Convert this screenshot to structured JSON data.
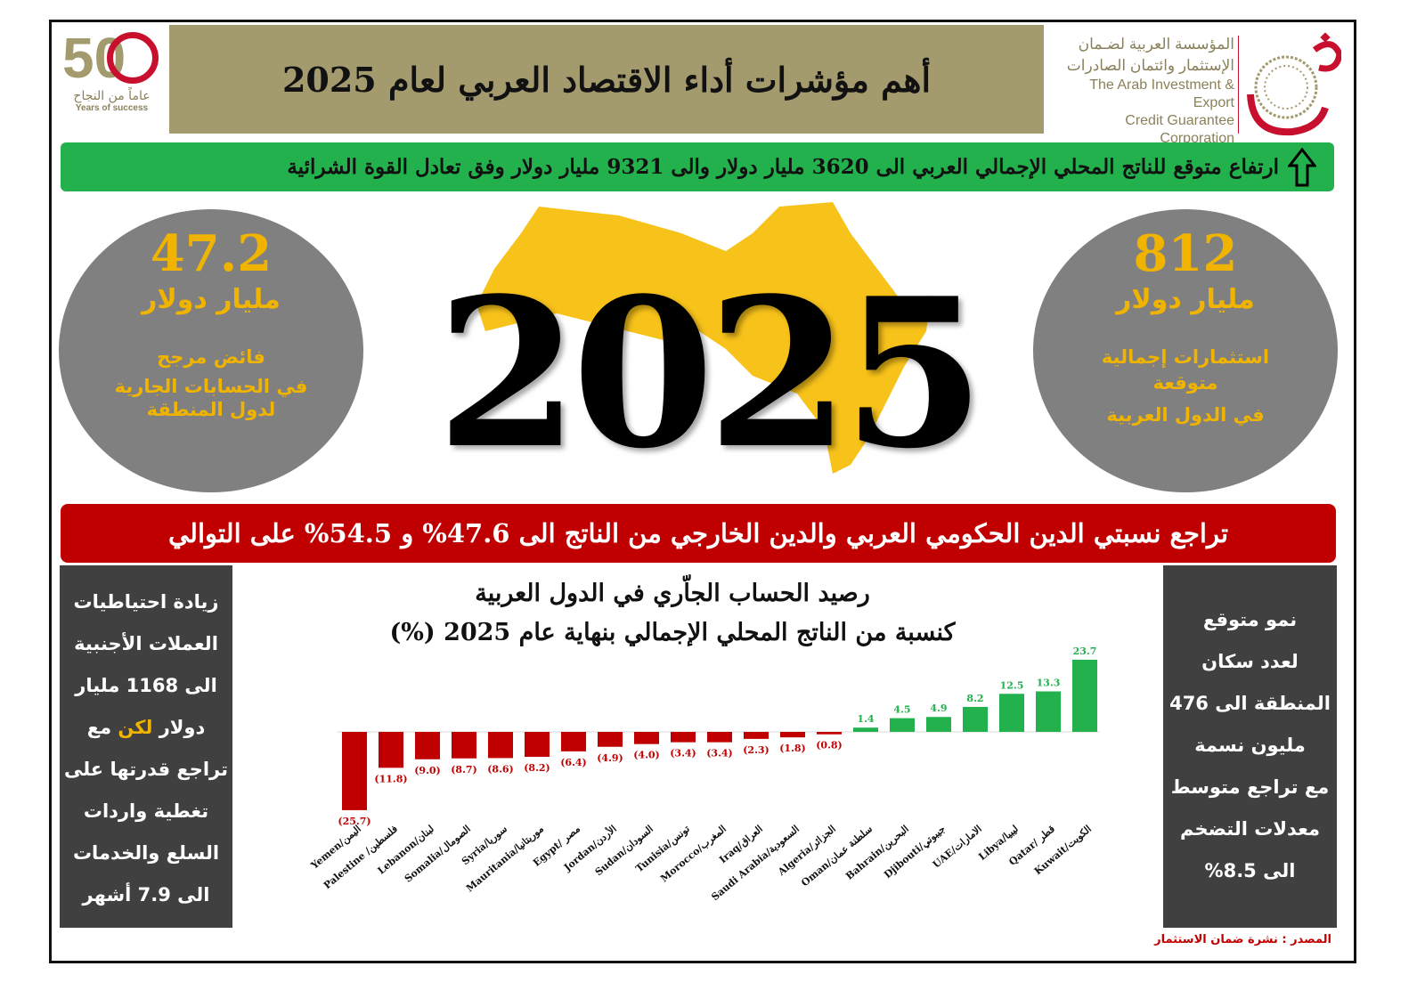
{
  "header": {
    "title": "أهم مؤشرات أداء الاقتصاد العربي لعام 2025",
    "anniversary_logo": {
      "number": "50",
      "arabic": "عاماً من النجاح",
      "english": "Years of success"
    },
    "corporation": {
      "arabic_line1": "المؤسسة العربية لضـمان",
      "arabic_line2": "الإستثمار وائتمان الصادرات",
      "english_line1": "The Arab Investment & Export",
      "english_line2": "Credit Guarantee Corporation"
    }
  },
  "gdp_banner": {
    "text": "ارتفاع متوقع للناتج المحلي الإجمالي العربي الى 3620 مليار دولار والى 9321 مليار دولار وفق تعادل القوة الشرائية",
    "icon": "arrow-up-icon"
  },
  "left_circle": {
    "value": "47.2",
    "unit": "مليار دولار",
    "line1": "فائض مرجح",
    "line2": "في الحسابات الجارية",
    "line3": "لدول المنطقة"
  },
  "right_circle": {
    "value": "812",
    "unit": "مليار دولار",
    "line1": "استثمارات إجمالية",
    "line2": "متوقعة",
    "line3": "في الدول العربية"
  },
  "center_year": "2025",
  "debt_banner": {
    "text": "تراجع نسبتي الدين الحكومي العربي والدين الخارجي من الناتج الى 47.6% و 54.5% على التوالي"
  },
  "left_panel": {
    "line1": "زيادة احتياطيات",
    "line2": "العملات الأجنبية",
    "line3": "الى 1168 مليار",
    "line4_a": "دولار ",
    "line4_highlight": "لكن",
    "line4_b": " مع",
    "line5": "تراجع قدرتها على",
    "line6": "تغطية واردات",
    "line7": "السلع والخدمات",
    "line8": "الى 7.9 أشهر"
  },
  "right_panel": {
    "line1": "نمو متوقع",
    "line2": "لعدد سكان",
    "line3": "المنطقة الى 476",
    "line4": "مليون نسمة",
    "line5": "مع تراجع متوسط",
    "line6": "معدلات التضخم",
    "line7": "الى 8.5%"
  },
  "chart_data": {
    "type": "bar",
    "title": "رصيد الحساب الجاّري في الدول العربية",
    "subtitle": "كنسبة من الناتج المحلي الإجمالي بنهاية عام 2025 (%)",
    "categories": [
      "Yemen/اليمن",
      "Palestine /فلسطين",
      "Lebanon/لبنان",
      "Somalia/الصومال",
      "Syria/سوريا",
      "Mauritania/موريتانيا",
      "Egypt/ مصر",
      "Jordan/الأردن",
      "Sudan/السودان",
      "Tunisia/تونس",
      "Morocco/المغرب",
      "Iraq/العراق",
      "Saudi Arabia/السعودية",
      "Algeria/الجزائر",
      "Oman/سلطنة عمان",
      "Bahrain/البحرين",
      "Djibouti/جيبوتي",
      "UAE/الامارات",
      "Libya/ليبيا",
      "Qatar/ قطر",
      "Kuwait/الكويت"
    ],
    "values": [
      -25.7,
      -11.8,
      -9.0,
      -8.7,
      -8.6,
      -8.2,
      -6.4,
      -4.9,
      -4.0,
      -3.4,
      -3.4,
      -2.3,
      -1.8,
      -0.8,
      1.4,
      4.5,
      4.9,
      8.2,
      12.5,
      13.3,
      23.7
    ],
    "data_labels": [
      "(25.7)",
      "(11.8)",
      "(9.0)",
      "(8.7)",
      "(8.6)",
      "(8.2)",
      "(6.4)",
      "(4.9)",
      "(4.0)",
      "(3.4)",
      "(3.4)",
      "(2.3)",
      "(1.8)",
      "(0.8)",
      "1.4",
      "4.5",
      "4.9",
      "8.2",
      "12.5",
      "13.3",
      "23.7"
    ],
    "colors": {
      "negative": "#c00000",
      "positive": "#22b14c"
    },
    "grid": false
  },
  "source": "المصدر : نشرة ضمان الاستثمار",
  "colors": {
    "header": "#a39a6e",
    "green": "#22b14c",
    "red": "#c00000",
    "circle": "#808080",
    "gold": "#f0b400",
    "panel": "#404040"
  }
}
